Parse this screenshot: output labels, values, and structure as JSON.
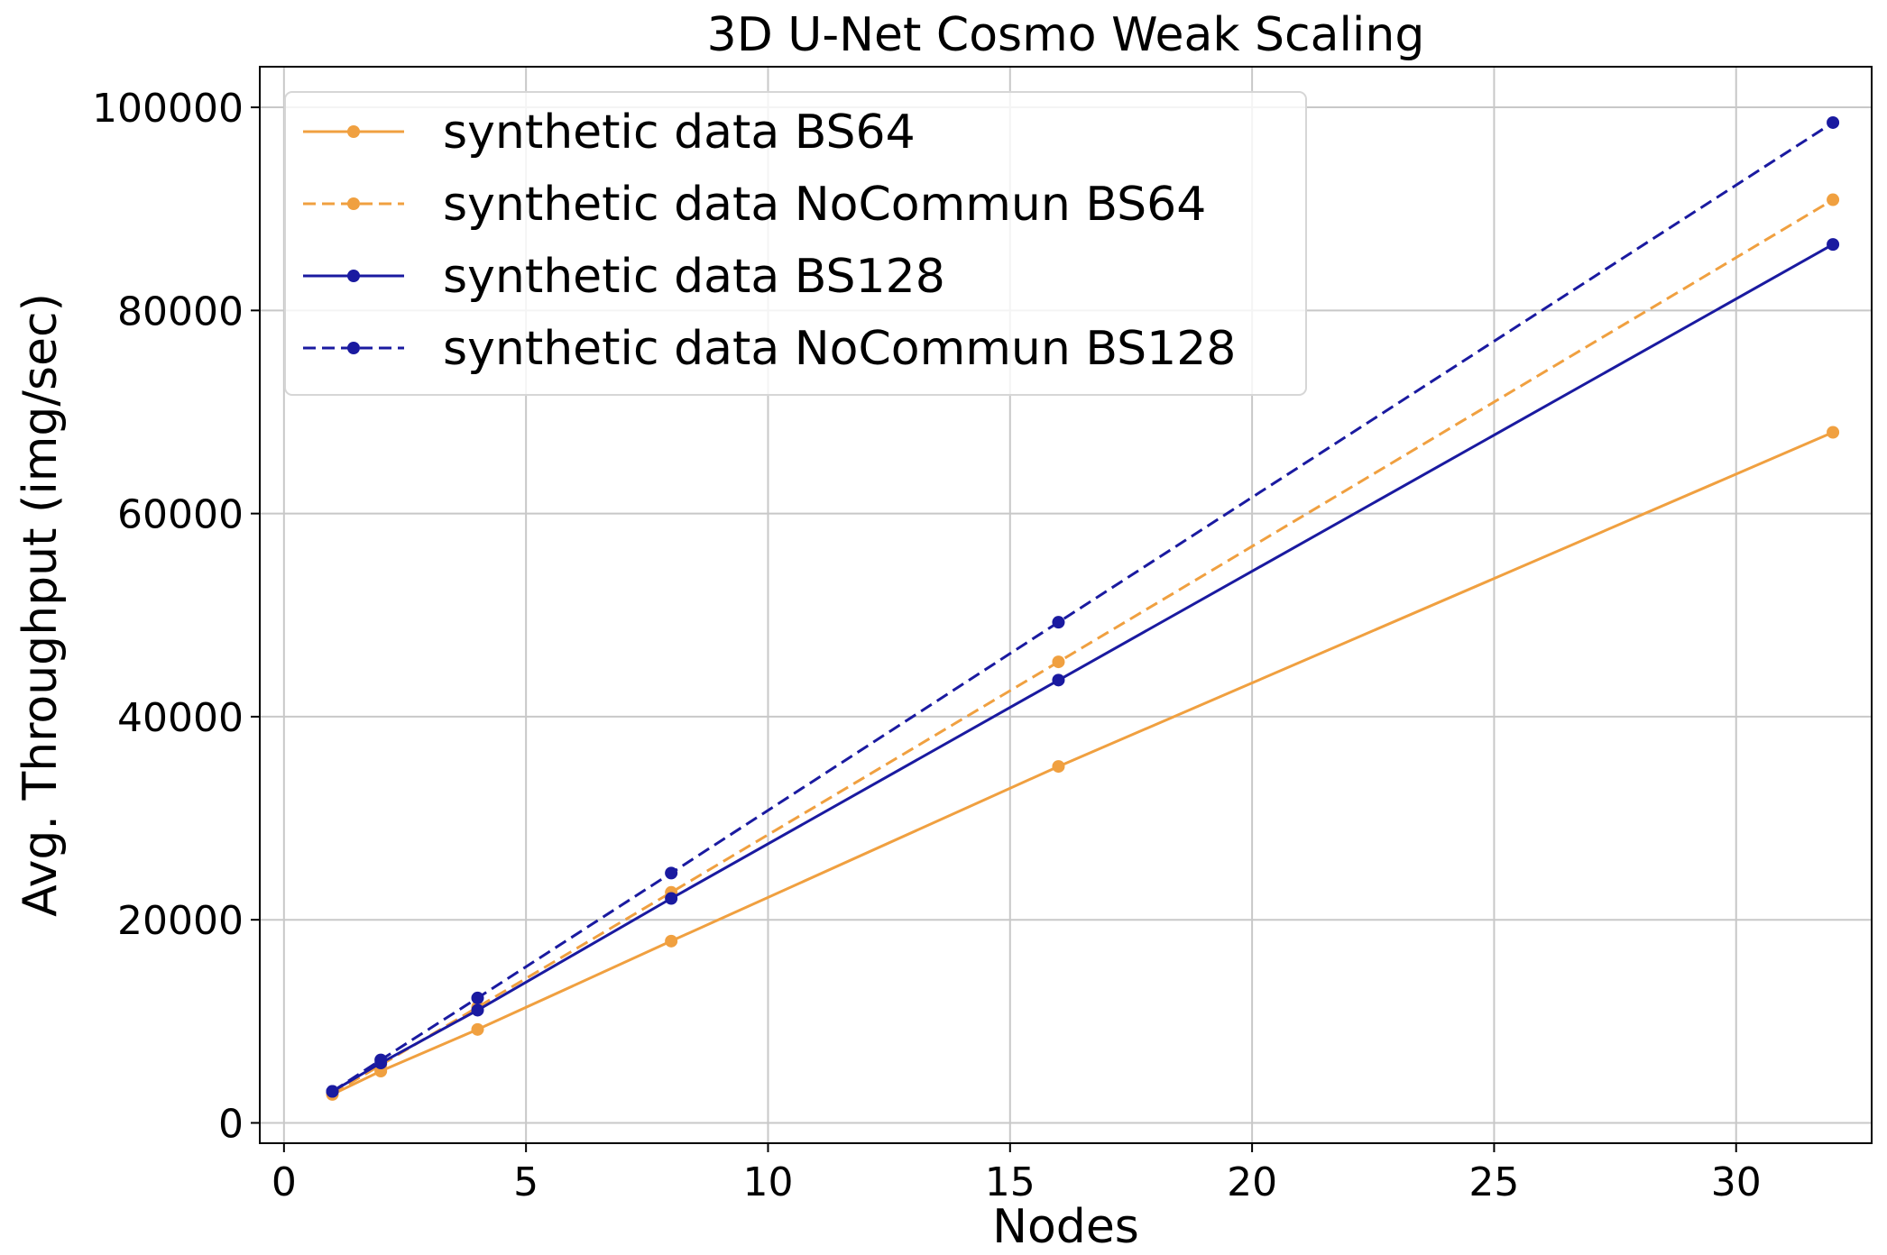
{
  "chart_data": {
    "type": "line",
    "title": "3D U-Net Cosmo Weak Scaling",
    "xlabel": "Nodes",
    "ylabel": "Avg. Throughput (img/sec)",
    "xlim": [
      -0.5,
      32.8
    ],
    "ylim": [
      -2000,
      104000
    ],
    "xticks": [
      0,
      5,
      10,
      15,
      20,
      25,
      30
    ],
    "yticks": [
      0,
      20000,
      40000,
      60000,
      80000,
      100000
    ],
    "grid": true,
    "legend_position": "top-left",
    "x": [
      1,
      2,
      4,
      8,
      16,
      32
    ],
    "series": [
      {
        "name": "synthetic data BS64",
        "values": [
          2800,
          5100,
          9200,
          17900,
          35100,
          68000
        ],
        "color": "#f0a040",
        "dash": "solid"
      },
      {
        "name": "synthetic data NoCommun BS64",
        "values": [
          2900,
          5700,
          11400,
          22700,
          45400,
          90900
        ],
        "color": "#f0a040",
        "dash": "dashed"
      },
      {
        "name": "synthetic data BS128",
        "values": [
          3100,
          5900,
          11100,
          22100,
          43600,
          86500
        ],
        "color": "#1a1aa0",
        "dash": "solid"
      },
      {
        "name": "synthetic data NoCommun BS128",
        "values": [
          3100,
          6200,
          12300,
          24600,
          49300,
          98500
        ],
        "color": "#1a1aa0",
        "dash": "dashed"
      }
    ]
  }
}
